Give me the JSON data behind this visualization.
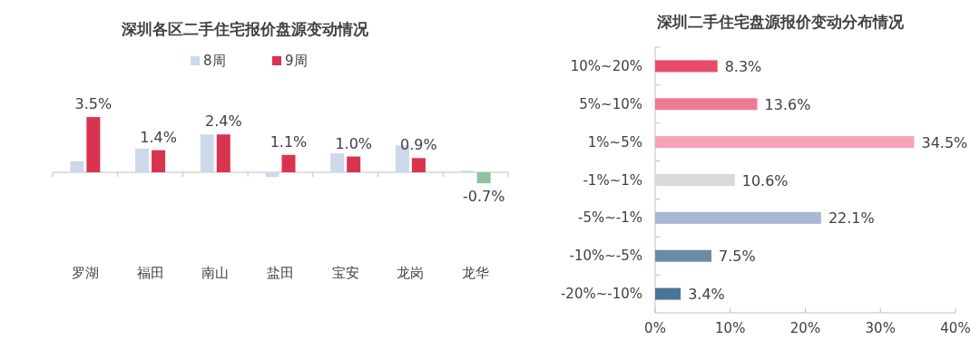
{
  "chart_data": [
    {
      "type": "bar",
      "title": "深圳各区二手住宅报价盘源变动情况",
      "categories": [
        "罗湖",
        "福田",
        "南山",
        "盐田",
        "宝安",
        "龙岗",
        "龙华"
      ],
      "legend": "top",
      "series": [
        {
          "name": "8周",
          "color": "#cdd9ea",
          "values": [
            0.7,
            1.5,
            2.4,
            -0.3,
            1.2,
            1.7,
            0.1
          ]
        },
        {
          "name": "9周",
          "color": "#d9344f",
          "colors": [
            "#d9344f",
            "#d9344f",
            "#d9344f",
            "#d9344f",
            "#d9344f",
            "#d9344f",
            "#8fc1a0"
          ],
          "values": [
            3.5,
            1.4,
            2.4,
            1.1,
            1.0,
            0.9,
            -0.7
          ],
          "value_labels": [
            "3.5%",
            "1.4%",
            "2.4%",
            "1.1%",
            "1.0%",
            "0.9%",
            "-0.7%"
          ]
        }
      ]
    },
    {
      "type": "bar",
      "orientation": "horizontal",
      "title": "深圳二手住宅盘源报价变动分布情况",
      "categories": [
        "10%~20%",
        "5%~10%",
        "1%~5%",
        "-1%~1%",
        "-5%~-1%",
        "-10%~-5%",
        "-20%~-10%"
      ],
      "values": [
        8.3,
        13.6,
        34.5,
        10.6,
        22.1,
        7.5,
        3.4
      ],
      "value_labels": [
        "8.3%",
        "13.6%",
        "34.5%",
        "10.6%",
        "22.1%",
        "7.5%",
        "3.4%"
      ],
      "colors": [
        "#e84a6a",
        "#f07a94",
        "#f4a3b8",
        "#d9d9d9",
        "#a8b8d4",
        "#6d8aa8",
        "#4a7598"
      ],
      "xlim": [
        0,
        40
      ],
      "xticks": [
        {
          "value": 0,
          "label": "0%"
        },
        {
          "value": 10,
          "label": "10%"
        },
        {
          "value": 20,
          "label": "20%"
        },
        {
          "value": 30,
          "label": "30%"
        },
        {
          "value": 40,
          "label": "40%"
        }
      ]
    }
  ]
}
